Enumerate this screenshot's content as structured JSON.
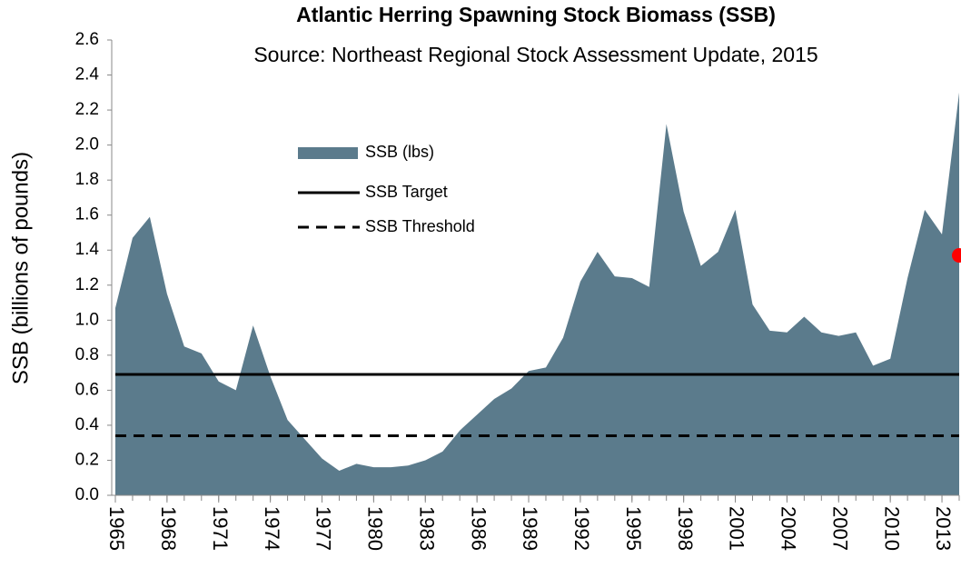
{
  "chart_data": {
    "type": "area",
    "title": "Atlantic Herring Spawning Stock Biomass (SSB)",
    "subtitle": "Source: Northeast Regional Stock Assessment Update, 2015",
    "y_label": "SSB (billions of pounds)",
    "x": [
      1965,
      1966,
      1967,
      1968,
      1969,
      1970,
      1971,
      1972,
      1973,
      1974,
      1975,
      1976,
      1977,
      1978,
      1979,
      1980,
      1981,
      1982,
      1983,
      1984,
      1985,
      1986,
      1987,
      1988,
      1989,
      1990,
      1991,
      1992,
      1993,
      1994,
      1995,
      1996,
      1997,
      1998,
      1999,
      2000,
      2001,
      2002,
      2003,
      2004,
      2005,
      2006,
      2007,
      2008,
      2009,
      2010,
      2011,
      2012,
      2013,
      2014
    ],
    "series": [
      {
        "name": "SSB (lbs)",
        "color": "#5b7b8c",
        "values": [
          1.07,
          1.47,
          1.59,
          1.15,
          0.85,
          0.81,
          0.65,
          0.6,
          0.97,
          0.68,
          0.43,
          0.32,
          0.21,
          0.14,
          0.18,
          0.16,
          0.16,
          0.17,
          0.2,
          0.25,
          0.37,
          0.46,
          0.55,
          0.61,
          0.71,
          0.73,
          0.9,
          1.22,
          1.39,
          1.25,
          1.24,
          1.19,
          2.12,
          1.62,
          1.31,
          1.39,
          1.63,
          1.09,
          0.94,
          0.93,
          1.02,
          0.93,
          0.91,
          0.93,
          0.74,
          0.78,
          1.24,
          1.63,
          1.49,
          2.3
        ]
      }
    ],
    "reference_lines": [
      {
        "name": "SSB Target",
        "value": 0.69,
        "color": "#000000",
        "style": "solid"
      },
      {
        "name": "SSB Threshold",
        "value": 0.34,
        "color": "#000000",
        "style": "dashed"
      }
    ],
    "marker": {
      "x": 2014,
      "value": 1.37,
      "color": "#ff0000"
    },
    "xlim": [
      1965,
      2014
    ],
    "xticks": [
      1965,
      1968,
      1971,
      1974,
      1977,
      1980,
      1983,
      1986,
      1989,
      1992,
      1995,
      1998,
      2001,
      2004,
      2007,
      2010,
      2013
    ],
    "ylim": [
      0,
      2.6
    ],
    "yticks": [
      {
        "value": 0,
        "label": "0.0"
      },
      {
        "value": 0.2,
        "label": "0.2"
      },
      {
        "value": 0.4,
        "label": "0.4"
      },
      {
        "value": 0.6,
        "label": "0.6"
      },
      {
        "value": 0.8,
        "label": "0.8"
      },
      {
        "value": 1,
        "label": "1.0"
      },
      {
        "value": 1.2,
        "label": "1.2"
      },
      {
        "value": 1.4,
        "label": "1.4"
      },
      {
        "value": 1.6,
        "label": "1.6"
      },
      {
        "value": 1.8,
        "label": "1.8"
      },
      {
        "value": 2,
        "label": "2.0"
      },
      {
        "value": 2.2,
        "label": "2.2"
      },
      {
        "value": 2.4,
        "label": "2.4"
      },
      {
        "value": 2.6,
        "label": "2.6"
      }
    ]
  }
}
